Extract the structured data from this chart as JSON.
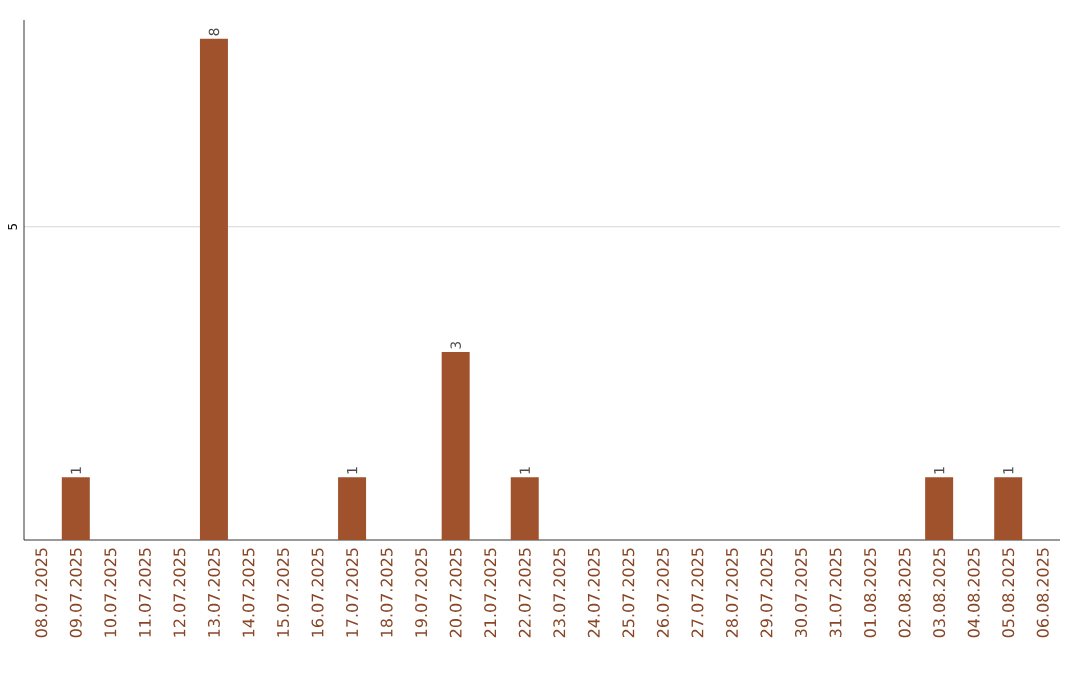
{
  "chart_data": {
    "type": "bar",
    "categories": [
      "08.07.2025",
      "09.07.2025",
      "10.07.2025",
      "11.07.2025",
      "12.07.2025",
      "13.07.2025",
      "14.07.2025",
      "15.07.2025",
      "16.07.2025",
      "17.07.2025",
      "18.07.2025",
      "19.07.2025",
      "20.07.2025",
      "21.07.2025",
      "22.07.2025",
      "23.07.2025",
      "24.07.2025",
      "25.07.2025",
      "26.07.2025",
      "27.07.2025",
      "28.07.2025",
      "29.07.2025",
      "30.07.2025",
      "31.07.2025",
      "01.08.2025",
      "02.08.2025",
      "03.08.2025",
      "04.08.2025",
      "05.08.2025",
      "06.08.2025"
    ],
    "values": [
      0,
      1,
      0,
      0,
      0,
      8,
      0,
      0,
      0,
      1,
      0,
      0,
      3,
      0,
      1,
      0,
      0,
      0,
      0,
      0,
      0,
      0,
      0,
      0,
      0,
      0,
      1,
      0,
      1,
      0
    ],
    "value_labels": [
      null,
      "1",
      null,
      null,
      null,
      "8",
      null,
      null,
      null,
      "1",
      null,
      null,
      "3",
      null,
      "1",
      null,
      null,
      null,
      null,
      null,
      null,
      null,
      null,
      null,
      null,
      null,
      "1",
      null,
      "1",
      null
    ],
    "color": "#a0522d",
    "ylim": [
      0,
      8.3
    ],
    "yticks": [
      5
    ],
    "grid": "y"
  }
}
